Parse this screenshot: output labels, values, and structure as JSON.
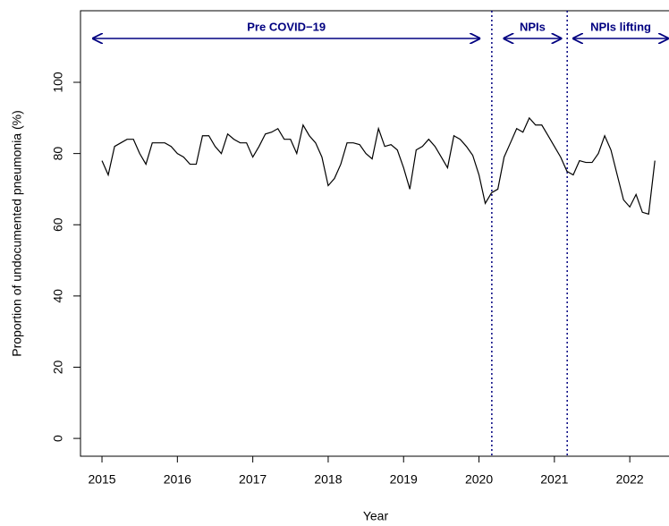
{
  "chart_data": {
    "type": "line",
    "xlabel": "Year",
    "ylabel": "Proportion of undocumented pneumonia (%)",
    "x": [
      2015,
      2015.083,
      2015.167,
      2015.25,
      2015.333,
      2015.417,
      2015.5,
      2015.583,
      2015.667,
      2015.75,
      2015.833,
      2015.917,
      2016,
      2016.083,
      2016.167,
      2016.25,
      2016.333,
      2016.417,
      2016.5,
      2016.583,
      2016.667,
      2016.75,
      2016.833,
      2016.917,
      2017,
      2017.083,
      2017.167,
      2017.25,
      2017.333,
      2017.417,
      2017.5,
      2017.583,
      2017.667,
      2017.75,
      2017.833,
      2017.917,
      2018,
      2018.083,
      2018.167,
      2018.25,
      2018.333,
      2018.417,
      2018.5,
      2018.583,
      2018.667,
      2018.75,
      2018.833,
      2018.917,
      2019,
      2019.083,
      2019.167,
      2019.25,
      2019.333,
      2019.417,
      2019.5,
      2019.583,
      2019.667,
      2019.75,
      2019.833,
      2019.917,
      2020,
      2020.083,
      2020.167,
      2020.25,
      2020.333,
      2020.417,
      2020.5,
      2020.583,
      2020.667,
      2020.75,
      2020.833,
      2020.917,
      2021,
      2021.083,
      2021.167,
      2021.25,
      2021.333,
      2021.417,
      2021.5,
      2021.583,
      2021.667,
      2021.75,
      2021.833,
      2021.917,
      2022,
      2022.083,
      2022.167,
      2022.25,
      2022.333
    ],
    "series": [
      {
        "color": "#000000",
        "values": [
          78,
          74,
          82,
          83,
          84,
          84,
          80,
          77,
          83,
          83,
          83,
          82,
          80,
          79,
          77,
          77,
          85,
          85,
          82,
          80,
          85.5,
          84,
          83,
          83,
          79,
          82,
          85.5,
          86,
          87,
          84,
          84,
          80,
          88,
          85,
          83,
          79,
          71,
          73,
          77,
          83,
          83,
          82.5,
          80,
          78.5,
          87,
          82,
          82.5,
          81,
          76,
          70,
          81,
          82,
          84,
          82,
          79,
          76,
          85,
          84,
          82,
          79.5,
          74,
          66,
          69,
          70,
          79,
          83,
          87,
          86,
          90,
          88,
          88,
          85,
          82,
          79,
          75,
          74,
          78,
          77.5,
          77.5,
          80,
          85,
          81,
          74,
          67,
          65,
          68.5,
          63.5,
          63,
          78
        ]
      }
    ],
    "xlim": [
      2014.715,
      2022.52
    ],
    "ylim": [
      -5,
      120.1
    ],
    "xticks": [
      2015,
      2016,
      2017,
      2018,
      2019,
      2020,
      2021,
      2022
    ],
    "yticks": [
      0,
      20,
      40,
      60,
      80,
      100
    ],
    "vlines": {
      "color": "#000080",
      "x": [
        2020.17,
        2021.17
      ]
    },
    "annotations": [
      {
        "text": "Pre COVID−19",
        "x_start": 2014.87,
        "x_end": 2020.02
      },
      {
        "text": "NPIs",
        "x_start": 2020.32,
        "x_end": 2021.1
      },
      {
        "text": "NPIs lifting",
        "x_start": 2021.24,
        "x_end": 2022.52
      }
    ]
  }
}
